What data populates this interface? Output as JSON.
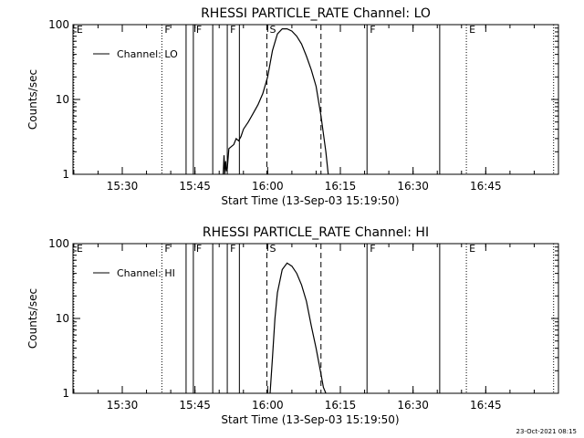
{
  "footer": {
    "timestamp": "23-Oct-2021 08:15"
  },
  "colors": {
    "background": "#ffffff",
    "foreground": "#000000"
  },
  "chart_data": [
    {
      "type": "line",
      "title": "RHESSI PARTICLE_RATE Channel: LO",
      "xlabel": "Start Time (13-Sep-03 15:19:50)",
      "ylabel": "Counts/sec",
      "yscale": "log",
      "xlim": [
        "15:19:50",
        "17:00:00"
      ],
      "ylim": [
        1,
        100
      ],
      "x_ticks": [
        "15:30",
        "15:45",
        "16:00",
        "16:15",
        "16:30",
        "16:45"
      ],
      "y_ticks": [
        "1",
        "10",
        "100"
      ],
      "legend": {
        "position": "top-left",
        "entries": [
          "Channel: LO"
        ]
      },
      "grid": false,
      "series": [
        {
          "name": "Channel: LO",
          "x": [
            "15:50:50",
            "15:51:00",
            "15:51:10",
            "15:51:20",
            "15:51:30",
            "15:51:40",
            "15:52:00",
            "15:53:00",
            "15:53:30",
            "15:54:00",
            "15:54:30",
            "15:55:00",
            "15:56:00",
            "15:57:00",
            "15:58:00",
            "15:59:00",
            "16:00:00",
            "16:01:00",
            "16:02:00",
            "16:03:00",
            "16:04:00",
            "16:05:00",
            "16:06:00",
            "16:07:00",
            "16:08:00",
            "16:09:00",
            "16:10:00",
            "16:11:00",
            "16:12:00",
            "16:12:30"
          ],
          "y": [
            1.0,
            1.8,
            1.0,
            1.5,
            1.1,
            1.2,
            2.2,
            2.5,
            3.0,
            2.8,
            3.2,
            4.0,
            5.0,
            6.5,
            8.5,
            12,
            20,
            45,
            75,
            88,
            88,
            82,
            70,
            55,
            38,
            25,
            15,
            6,
            2,
            1
          ]
        }
      ],
      "markers": [
        {
          "label": "E",
          "time": "15:20:00",
          "style": "dotted"
        },
        {
          "label": "F",
          "time": "15:38:10",
          "style": "dotted"
        },
        {
          "label": "",
          "time": "15:43:10",
          "style": "solid"
        },
        {
          "label": "F",
          "time": "15:44:40",
          "style": "solid"
        },
        {
          "label": "",
          "time": "15:48:40",
          "style": "solid"
        },
        {
          "label": "F",
          "time": "15:51:40",
          "style": "solid"
        },
        {
          "label": "",
          "time": "15:54:10",
          "style": "solid"
        },
        {
          "label": "S",
          "time": "15:59:50",
          "style": "dashed"
        },
        {
          "label": "",
          "time": "16:11:00",
          "style": "dashed"
        },
        {
          "label": "F",
          "time": "16:20:30",
          "style": "solid"
        },
        {
          "label": "",
          "time": "16:35:30",
          "style": "solid"
        },
        {
          "label": "E",
          "time": "16:41:00",
          "style": "dotted"
        },
        {
          "label": "",
          "time": "16:59:00",
          "style": "dotted"
        }
      ]
    },
    {
      "type": "line",
      "title": "RHESSI PARTICLE_RATE Channel: HI",
      "xlabel": "Start Time (13-Sep-03 15:19:50)",
      "ylabel": "Counts/sec",
      "yscale": "log",
      "xlim": [
        "15:19:50",
        "17:00:00"
      ],
      "ylim": [
        1,
        100
      ],
      "x_ticks": [
        "15:30",
        "15:45",
        "16:00",
        "16:15",
        "16:30",
        "16:45"
      ],
      "y_ticks": [
        "1",
        "10",
        "100"
      ],
      "legend": {
        "position": "top-left",
        "entries": [
          "Channel: HI"
        ]
      },
      "grid": false,
      "series": [
        {
          "name": "Channel: HI",
          "x": [
            "16:00:30",
            "16:01:00",
            "16:01:30",
            "16:02:00",
            "16:03:00",
            "16:04:00",
            "16:05:00",
            "16:06:00",
            "16:07:00",
            "16:08:00",
            "16:09:00",
            "16:10:00",
            "16:11:00",
            "16:11:30",
            "16:12:00"
          ],
          "y": [
            1.0,
            3.0,
            10,
            22,
            45,
            55,
            50,
            40,
            28,
            17,
            8,
            4,
            1.8,
            1.2,
            1.0
          ]
        }
      ],
      "markers": [
        {
          "label": "E",
          "time": "15:20:00",
          "style": "dotted"
        },
        {
          "label": "F",
          "time": "15:38:10",
          "style": "dotted"
        },
        {
          "label": "",
          "time": "15:43:10",
          "style": "solid"
        },
        {
          "label": "F",
          "time": "15:44:40",
          "style": "solid"
        },
        {
          "label": "",
          "time": "15:48:40",
          "style": "solid"
        },
        {
          "label": "F",
          "time": "15:51:40",
          "style": "solid"
        },
        {
          "label": "",
          "time": "15:54:10",
          "style": "solid"
        },
        {
          "label": "S",
          "time": "15:59:50",
          "style": "dashed"
        },
        {
          "label": "",
          "time": "16:11:00",
          "style": "dashed"
        },
        {
          "label": "F",
          "time": "16:20:30",
          "style": "solid"
        },
        {
          "label": "",
          "time": "16:35:30",
          "style": "solid"
        },
        {
          "label": "E",
          "time": "16:41:00",
          "style": "dotted"
        },
        {
          "label": "",
          "time": "16:59:00",
          "style": "dotted"
        }
      ]
    }
  ]
}
